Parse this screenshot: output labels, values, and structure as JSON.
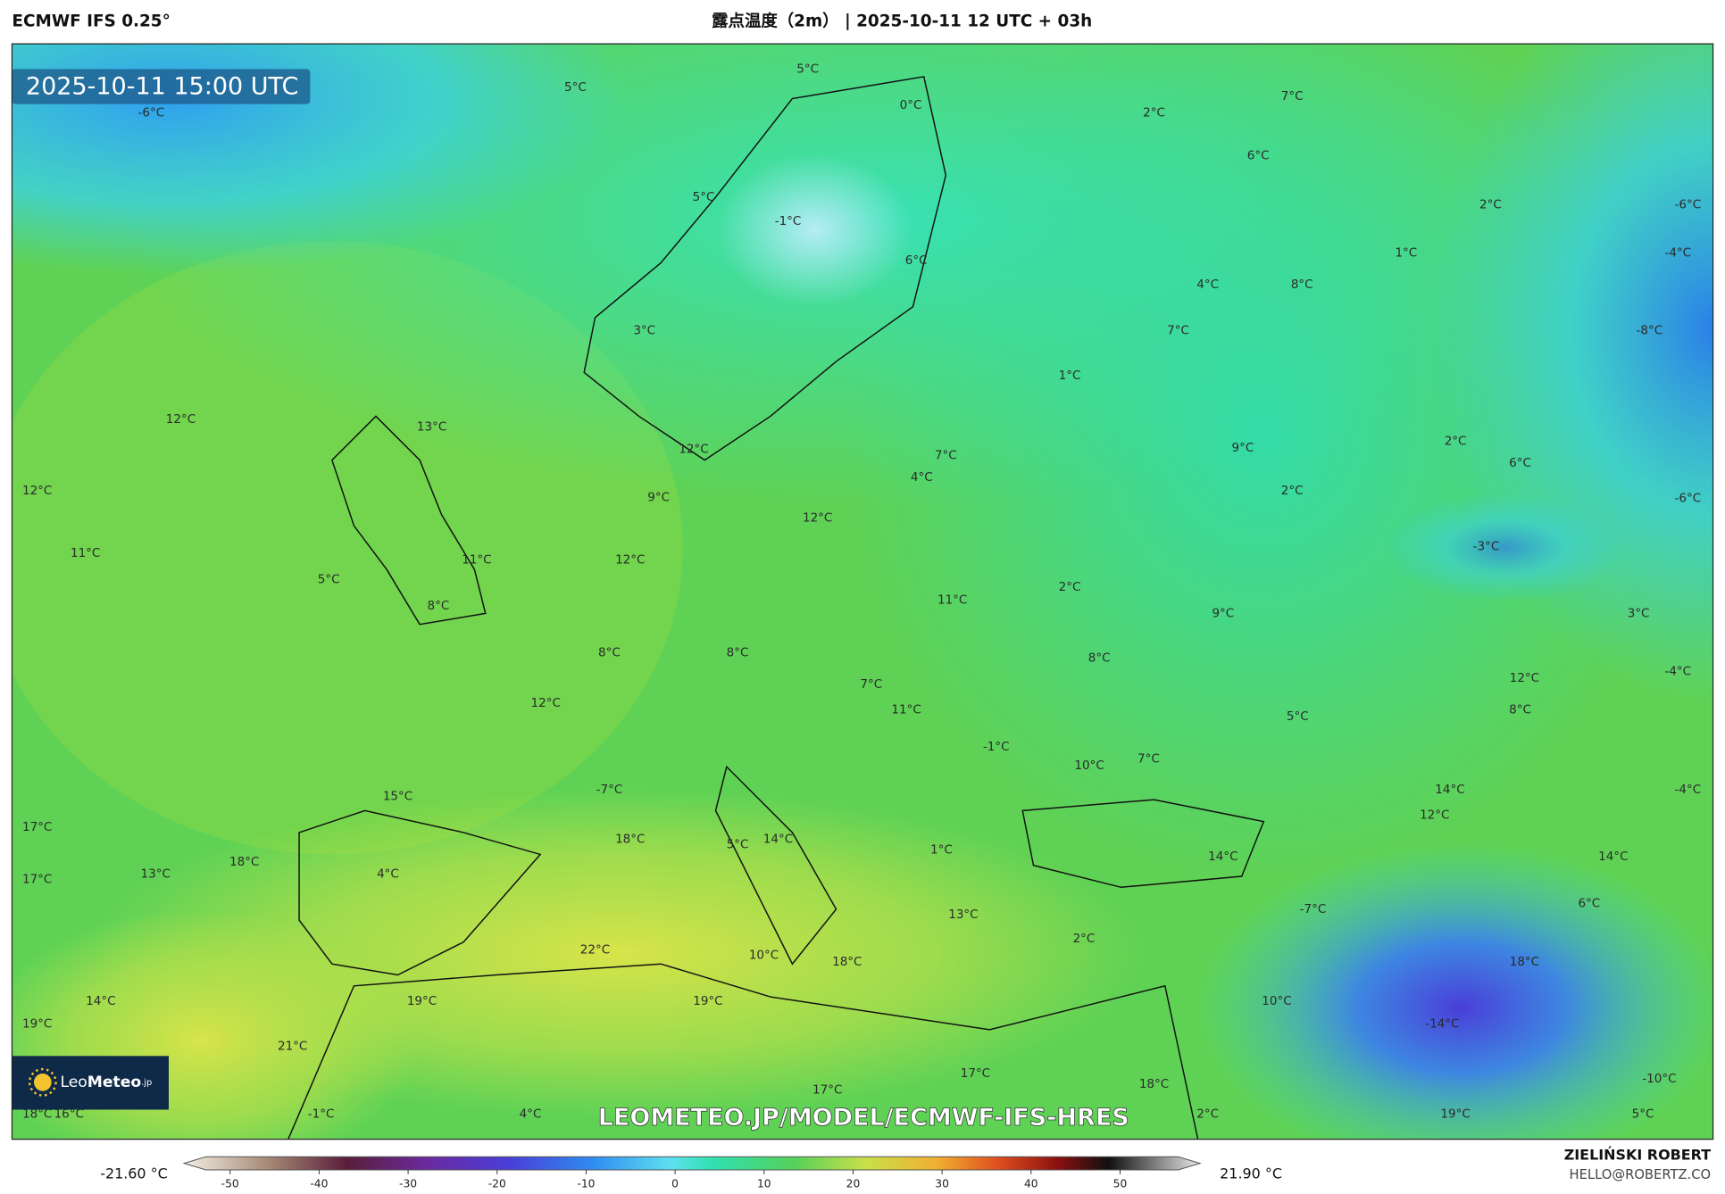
{
  "header": {
    "model": "ECMWF IFS 0.25°",
    "title": "露点温度（2m） | 2025-10-11 12 UTC + 03h"
  },
  "map": {
    "timestamp": "2025-10-11 15:00 UTC",
    "watermark": "LEOMETEO.JP/MODEL/ECMWF-IFS-HRES",
    "logo": {
      "name": "Leo",
      "name_bold": "Meteo",
      "suffix": ".jp"
    },
    "labels": [
      "5°C",
      "5°C",
      "0°C",
      "2°C",
      "7°C",
      "-6°C",
      "6°C",
      "5°C",
      "-1°C",
      "2°C",
      "-6°C",
      "6°C",
      "1°C",
      "-4°C",
      "4°C",
      "8°C",
      "3°C",
      "7°C",
      "-8°C",
      "1°C",
      "12°C",
      "13°C",
      "12°C",
      "7°C",
      "9°C",
      "2°C",
      "6°C",
      "4°C",
      "12°C",
      "9°C",
      "2°C",
      "-6°C",
      "12°C",
      "-3°C",
      "11°C",
      "11°C",
      "12°C",
      "5°C",
      "2°C",
      "11°C",
      "8°C",
      "9°C",
      "3°C",
      "8°C",
      "8°C",
      "8°C",
      "12°C",
      "-4°C",
      "7°C",
      "12°C",
      "11°C",
      "8°C",
      "5°C",
      "-1°C",
      "7°C",
      "10°C",
      "-7°C",
      "15°C",
      "14°C",
      "-4°C",
      "12°C",
      "17°C",
      "18°C",
      "5°C",
      "14°C",
      "1°C",
      "14°C",
      "14°C",
      "18°C",
      "13°C",
      "4°C",
      "17°C",
      "-7°C",
      "13°C",
      "6°C",
      "2°C",
      "22°C",
      "10°C",
      "18°C",
      "18°C",
      "14°C",
      "19°C",
      "19°C",
      "10°C",
      "-14°C",
      "19°C",
      "21°C",
      "17°C",
      "-10°C",
      "17°C",
      "18°C",
      "18°C",
      "16°C",
      "-1°C",
      "4°C",
      "2°C",
      "19°C",
      "5°C"
    ]
  },
  "colorbar": {
    "min_label": "-21.60 °C",
    "max_label": "21.90 °C",
    "ticks": [
      -50,
      -40,
      -30,
      -20,
      -10,
      0,
      10,
      20,
      30,
      40,
      50
    ]
  },
  "credits": {
    "author": "ZIELIŃSKI ROBERT",
    "email": "HELLO@ROBERTZ.CO"
  }
}
